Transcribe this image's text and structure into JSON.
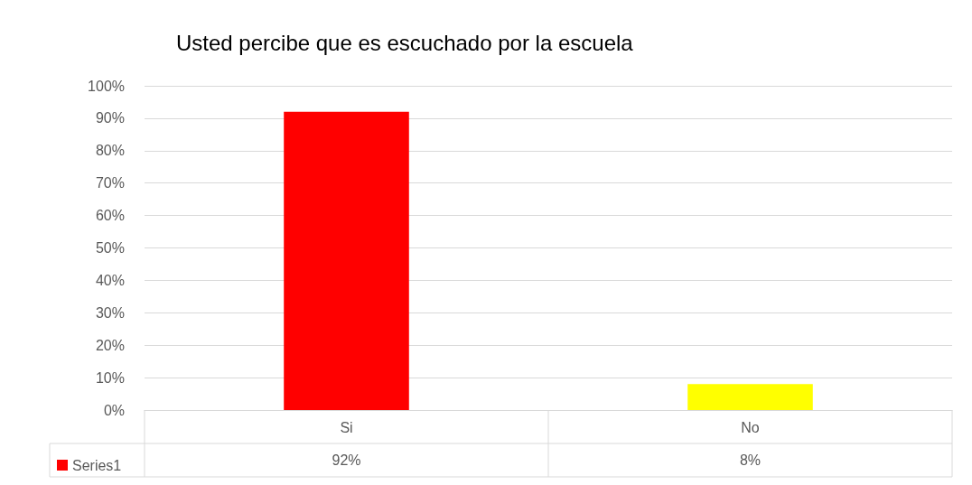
{
  "chart_data": {
    "type": "bar",
    "title": "Usted percibe que es escuchado por la escuela",
    "categories": [
      "Si",
      "No"
    ],
    "series": [
      {
        "name": "Series1",
        "color": "#ff0000",
        "colors": [
          "#ff0000",
          "#ffff00"
        ],
        "values": [
          92,
          8
        ],
        "value_labels": [
          "92%",
          "8%"
        ]
      }
    ],
    "ylim": [
      0,
      100
    ],
    "yticks": [
      {
        "value": 0,
        "label": "0%"
      },
      {
        "value": 10,
        "label": "10%"
      },
      {
        "value": 20,
        "label": "20%"
      },
      {
        "value": 30,
        "label": "30%"
      },
      {
        "value": 40,
        "label": "40%"
      },
      {
        "value": 50,
        "label": "50%"
      },
      {
        "value": 60,
        "label": "60%"
      },
      {
        "value": 70,
        "label": "70%"
      },
      {
        "value": 80,
        "label": "80%"
      },
      {
        "value": 90,
        "label": "90%"
      },
      {
        "value": 100,
        "label": "100%"
      }
    ],
    "grid": "y",
    "legend": "bottom left"
  }
}
